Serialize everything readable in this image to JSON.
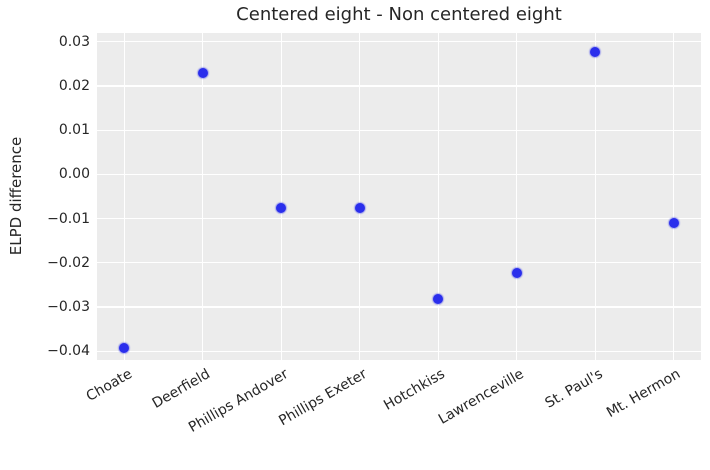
{
  "chart_data": {
    "type": "scatter",
    "title": "Centered eight - Non centered eight",
    "xlabel": "",
    "ylabel": "ELPD difference",
    "categories": [
      "Choate",
      "Deerfield",
      "Phillips Andover",
      "Phillips Exeter",
      "Hotchkiss",
      "Lawrenceville",
      "St. Paul's",
      "Mt. Hermon"
    ],
    "values": [
      -0.0393,
      0.023,
      -0.0075,
      -0.0077,
      -0.0283,
      -0.0222,
      0.0278,
      -0.011
    ],
    "yticks": [
      0.03,
      0.02,
      0.01,
      0.0,
      -0.01,
      -0.02,
      -0.03,
      -0.04
    ],
    "ytick_labels": [
      "0.03",
      "0.02",
      "0.01",
      "0.00",
      "−0.01",
      "−0.02",
      "−0.03",
      "−0.04"
    ],
    "ylim": [
      -0.042,
      0.032
    ],
    "grid": true,
    "legend_position": "none",
    "xtick_rotation": 30,
    "colors": {
      "point": "#2a2eec",
      "plot_background": "#ececec",
      "gridline": "#ffffff",
      "text": "#262626",
      "figure_background": "#ffffff"
    }
  }
}
